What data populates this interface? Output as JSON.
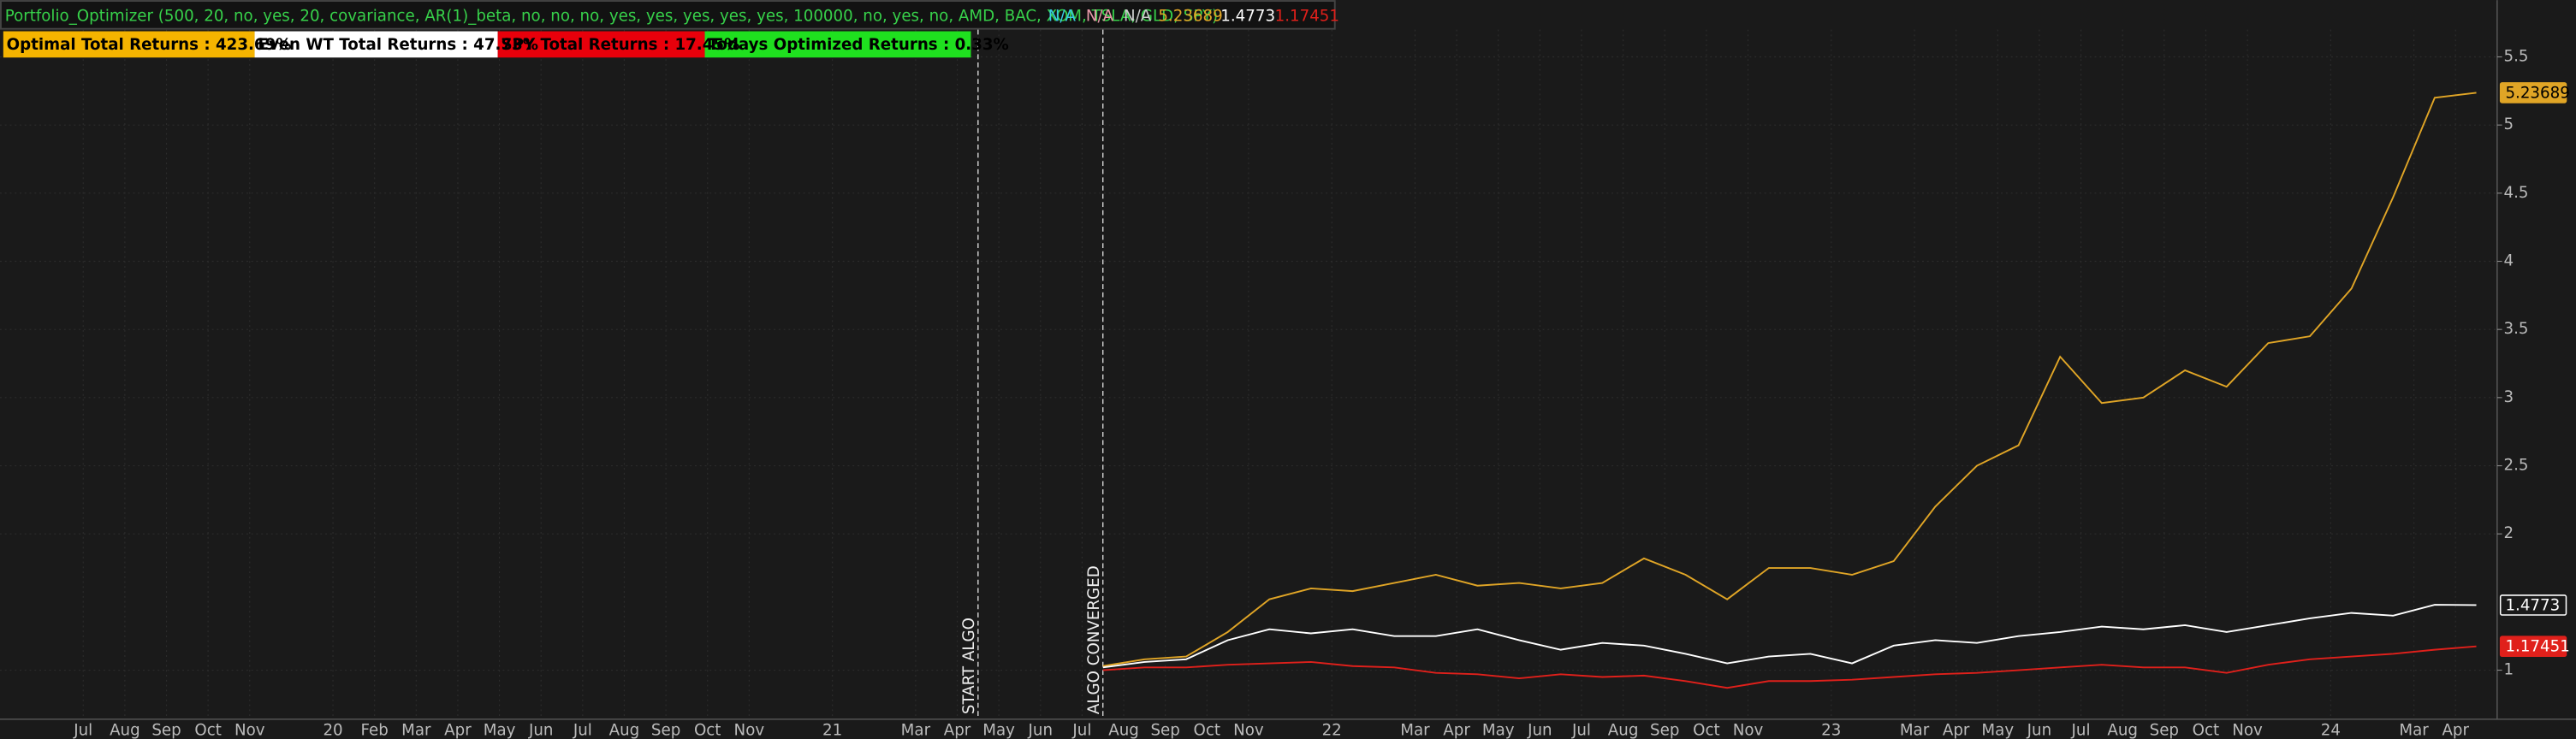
{
  "chart_data": {
    "type": "line",
    "title": "Portfolio_Optimizer (500, 20, no, yes, 20, covariance, AR(1)_beta, no, no, no, yes, yes, yes, yes, yes, 100000, no, yes, no, AMD, BAC, XOM, TSLA, GLD, SPY)",
    "status_labels": [
      "N/A",
      "N/A",
      "N/A"
    ],
    "badges": [
      "Optimal Total Returns : 423.69%",
      "Even WT Total Returns : 47.73%",
      "SPY Total Returns : 17.45%",
      "Todays Optimized Returns : 0.33%"
    ],
    "x": [
      "2021-07",
      "2021-08",
      "2021-09",
      "2021-10",
      "2021-11",
      "2021-12",
      "2022-01",
      "2022-02",
      "2022-03",
      "2022-04",
      "2022-05",
      "2022-06",
      "2022-07",
      "2022-08",
      "2022-09",
      "2022-10",
      "2022-11",
      "2022-12",
      "2023-01",
      "2023-02",
      "2023-03",
      "2023-04",
      "2023-05",
      "2023-06",
      "2023-07",
      "2023-08",
      "2023-09",
      "2023-10",
      "2023-11",
      "2023-12",
      "2024-01",
      "2024-02",
      "2024-03",
      "2024-04"
    ],
    "series": [
      {
        "name": "Optimal",
        "color": "#e0a526",
        "values": [
          1.03,
          1.08,
          1.1,
          1.28,
          1.52,
          1.6,
          1.58,
          1.64,
          1.7,
          1.62,
          1.64,
          1.6,
          1.64,
          1.82,
          1.7,
          1.52,
          1.75,
          1.75,
          1.7,
          1.8,
          2.2,
          2.5,
          2.65,
          3.3,
          2.96,
          3.0,
          3.2,
          3.08,
          3.4,
          3.45,
          3.8,
          4.47,
          5.2,
          5.23689
        ]
      },
      {
        "name": "Even WT",
        "color": "#ffffff",
        "values": [
          1.02,
          1.06,
          1.08,
          1.22,
          1.3,
          1.27,
          1.3,
          1.25,
          1.25,
          1.3,
          1.22,
          1.15,
          1.2,
          1.18,
          1.12,
          1.05,
          1.1,
          1.12,
          1.05,
          1.18,
          1.22,
          1.2,
          1.25,
          1.28,
          1.32,
          1.3,
          1.33,
          1.28,
          1.33,
          1.38,
          1.42,
          1.4,
          1.48,
          1.4773
        ]
      },
      {
        "name": "SPY",
        "color": "#e0201b",
        "values": [
          1.0,
          1.02,
          1.02,
          1.04,
          1.05,
          1.06,
          1.03,
          1.02,
          0.98,
          0.97,
          0.94,
          0.97,
          0.95,
          0.96,
          0.92,
          0.87,
          0.92,
          0.92,
          0.93,
          0.95,
          0.97,
          0.98,
          1.0,
          1.02,
          1.04,
          1.02,
          1.02,
          0.98,
          1.04,
          1.08,
          1.1,
          1.12,
          1.15,
          1.17451
        ]
      }
    ],
    "annotations": [
      {
        "text": "START ALGO",
        "x": "2021-04"
      },
      {
        "text": "ALGO CONVERGED",
        "x": "2021-07"
      }
    ],
    "xlim": [
      "2019-05",
      "2024-05"
    ],
    "xticks": [
      {
        "value": "2019-07",
        "label": "Jul"
      },
      {
        "value": "2019-08",
        "label": "Aug"
      },
      {
        "value": "2019-09",
        "label": "Sep"
      },
      {
        "value": "2019-10",
        "label": "Oct"
      },
      {
        "value": "2019-11",
        "label": "Nov"
      },
      {
        "value": "2020-01",
        "label": "20"
      },
      {
        "value": "2020-02",
        "label": "Feb"
      },
      {
        "value": "2020-03",
        "label": "Mar"
      },
      {
        "value": "2020-04",
        "label": "Apr"
      },
      {
        "value": "2020-05",
        "label": "May"
      },
      {
        "value": "2020-06",
        "label": "Jun"
      },
      {
        "value": "2020-07",
        "label": "Jul"
      },
      {
        "value": "2020-08",
        "label": "Aug"
      },
      {
        "value": "2020-09",
        "label": "Sep"
      },
      {
        "value": "2020-10",
        "label": "Oct"
      },
      {
        "value": "2020-11",
        "label": "Nov"
      },
      {
        "value": "2021-01",
        "label": "21"
      },
      {
        "value": "2021-03",
        "label": "Mar"
      },
      {
        "value": "2021-04",
        "label": "Apr"
      },
      {
        "value": "2021-05",
        "label": "May"
      },
      {
        "value": "2021-06",
        "label": "Jun"
      },
      {
        "value": "2021-07",
        "label": "Jul"
      },
      {
        "value": "2021-08",
        "label": "Aug"
      },
      {
        "value": "2021-09",
        "label": "Sep"
      },
      {
        "value": "2021-10",
        "label": "Oct"
      },
      {
        "value": "2021-11",
        "label": "Nov"
      },
      {
        "value": "2022-01",
        "label": "22"
      },
      {
        "value": "2022-03",
        "label": "Mar"
      },
      {
        "value": "2022-04",
        "label": "Apr"
      },
      {
        "value": "2022-05",
        "label": "May"
      },
      {
        "value": "2022-06",
        "label": "Jun"
      },
      {
        "value": "2022-07",
        "label": "Jul"
      },
      {
        "value": "2022-08",
        "label": "Aug"
      },
      {
        "value": "2022-09",
        "label": "Sep"
      },
      {
        "value": "2022-10",
        "label": "Oct"
      },
      {
        "value": "2022-11",
        "label": "Nov"
      },
      {
        "value": "2023-01",
        "label": "23"
      },
      {
        "value": "2023-03",
        "label": "Mar"
      },
      {
        "value": "2023-04",
        "label": "Apr"
      },
      {
        "value": "2023-05",
        "label": "May"
      },
      {
        "value": "2023-06",
        "label": "Jun"
      },
      {
        "value": "2023-07",
        "label": "Jul"
      },
      {
        "value": "2023-08",
        "label": "Aug"
      },
      {
        "value": "2023-09",
        "label": "Sep"
      },
      {
        "value": "2023-10",
        "label": "Oct"
      },
      {
        "value": "2023-11",
        "label": "Nov"
      },
      {
        "value": "2024-01",
        "label": "24"
      },
      {
        "value": "2024-03",
        "label": "Mar"
      },
      {
        "value": "2024-04",
        "label": "Apr"
      }
    ],
    "ylim": [
      0.64,
      5.7
    ],
    "yticks": [
      1,
      2,
      2.5,
      3,
      3.5,
      4,
      4.5,
      5,
      5.5
    ],
    "grid": true
  }
}
